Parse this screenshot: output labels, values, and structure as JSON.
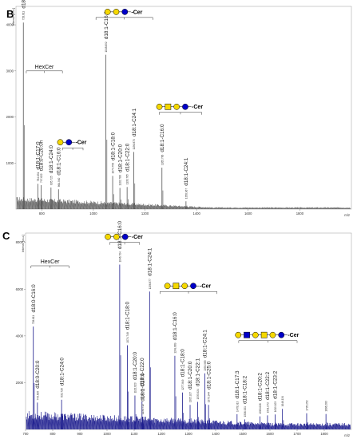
{
  "chart_data": [
    {
      "panel": "B",
      "type": "line",
      "ylabel": "Intens. [a.u.]",
      "xlabel": "m/z",
      "xlim": [
        700,
        2000
      ],
      "ylim": [
        0,
        4400
      ],
      "x_ticks": [
        "800",
        "1000",
        "1200",
        "1400",
        "1600",
        "1800"
      ],
      "y_ticks": [
        "1000",
        "2000",
        "3000",
        "4000"
      ],
      "line_color": "#555555",
      "groups": [
        {
          "label": "HexCer",
          "x_range": [
            740,
            880
          ],
          "y": 3000
        },
        {
          "label": "Cer",
          "glycan": [
            "gal",
            "gal",
            "glc"
          ],
          "x_range": [
            1010,
            1230
          ],
          "y": 4160
        },
        {
          "label": "Cer",
          "glycan": [
            "gal",
            "galnac",
            "gal",
            "glc"
          ],
          "x_range": [
            1255,
            1420
          ],
          "y": 2100
        },
        {
          "label": "Cer",
          "glycan": [
            "gal",
            "glc"
          ],
          "x_range": [
            880,
            960
          ],
          "y": 1330
        }
      ],
      "peaks": [
        {
          "x": 728.6,
          "y": 4050,
          "label": "d18:0-C16:0",
          "mz": "728.611"
        },
        {
          "x": 784.6,
          "y": 550,
          "label": "d18:1-C17:0",
          "mz": "784.631"
        },
        {
          "x": 797.6,
          "y": 520,
          "label": "d18:0-C20:0h",
          "mz": "797.622"
        },
        {
          "x": 835.7,
          "y": 470,
          "label": "d18:1-C24:0",
          "mz": "835.725"
        },
        {
          "x": 864.9,
          "y": 430,
          "label": "d18:1-C16:0",
          "mz": "864.940"
        },
        {
          "x": 1048.6,
          "y": 3350,
          "label": "d18:1-C16:0",
          "mz": "1048.692"
        },
        {
          "x": 1074.7,
          "y": 720,
          "label": "d18:1-C18:0",
          "mz": "1074.758"
        },
        {
          "x": 1102.8,
          "y": 460,
          "label": "d18:1-C20:0",
          "mz": "1102.788"
        },
        {
          "x": 1130.7,
          "y": 480,
          "label": "d18:1-C22:0",
          "mz": "1130.765"
        },
        {
          "x": 1156.8,
          "y": 1240,
          "label": "d18:1-C24:1",
          "mz": "1156.870"
        },
        {
          "x": 1265.7,
          "y": 900,
          "label": "d18:1-C16:0",
          "mz": "1265.766"
        },
        {
          "x": 1358.9,
          "y": 170,
          "label": "d18:1-C24:1",
          "mz": "1358.967"
        }
      ]
    },
    {
      "panel": "C",
      "type": "line",
      "ylabel": "Intens. [a.u.]",
      "xlabel": "m/z",
      "xlim": [
        700,
        1900
      ],
      "ylim": [
        0,
        8400
      ],
      "x_ticks": [
        "700",
        "800",
        "900",
        "1000",
        "1100",
        "1200",
        "1300",
        "1400",
        "1500",
        "1600",
        "1700",
        "1800"
      ],
      "y_ticks": [
        "2000",
        "4000",
        "6000",
        "8000"
      ],
      "line_color": "#1a1a8c",
      "groups": [
        {
          "label": "HexCer",
          "x_range": [
            720,
            860
          ],
          "y": 7000
        },
        {
          "label": "Cer",
          "glycan": [
            "gal",
            "gal",
            "glc"
          ],
          "x_range": [
            1010,
            1120
          ],
          "y": 8000
        },
        {
          "label": "Cer",
          "glycan": [
            "gal",
            "galnac",
            "gal",
            "glc"
          ],
          "x_range": [
            1195,
            1405
          ],
          "y": 5900
        },
        {
          "label": "Cer",
          "glycan": [
            "gal",
            "glcnac",
            "gal",
            "galnac",
            "gal",
            "glc"
          ],
          "x_range": [
            1485,
            1700
          ],
          "y": 3800
        }
      ],
      "peaks": [
        {
          "x": 728.6,
          "y": 4400,
          "label": "d18:0-C16:0",
          "mz": "728.611"
        },
        {
          "x": 743.7,
          "y": 1150,
          "label": "d18:0-C20:0",
          "mz": "743.695"
        },
        {
          "x": 832.7,
          "y": 1270,
          "label": "d18:1-C24:0",
          "mz": "832.728"
        },
        {
          "x": 1046.7,
          "y": 7050,
          "label": "d18:1-C16:0",
          "mz": "1046.704"
        },
        {
          "x": 1074.7,
          "y": 3600,
          "label": "d18:1-C18:0",
          "mz": "1074.748"
        },
        {
          "x": 1102.8,
          "y": 1450,
          "label": "d18:1-C20:0",
          "mz": "1102.823"
        },
        {
          "x": 1128.8,
          "y": 1200,
          "label": "d18:1-C22:0",
          "mz": "1128.865"
        },
        {
          "x": 1156.8,
          "y": 5900,
          "label": "d18:1-C24:1",
          "mz": "1156.877"
        },
        {
          "x": 1130.7,
          "y": 540,
          "label": "d18:1-C27:0",
          "mz": "1130.712"
        },
        {
          "x": 1249.8,
          "y": 3150,
          "label": "d18:1-C16:0",
          "mz": "1249.889"
        },
        {
          "x": 1277.8,
          "y": 1580,
          "label": "d18:1-C18:0",
          "mz": "1277.849"
        },
        {
          "x": 1305.9,
          "y": 1050,
          "label": "d18:1-C20:0",
          "mz": "1305.927"
        },
        {
          "x": 1333.9,
          "y": 1180,
          "label": "d18:1-C22:1",
          "mz": "1333.924"
        },
        {
          "x": 1359.9,
          "y": 2400,
          "label": "d18:1-C24:1",
          "mz": "1359.983"
        },
        {
          "x": 1373.9,
          "y": 1050,
          "label": "d18:1-C25:0",
          "mz": "1373.944"
        },
        {
          "x": 1478.9,
          "y": 650,
          "label": "d18:1-C17:3",
          "mz": "1478.913"
        },
        {
          "x": 1506.9,
          "y": 430,
          "label": "d18:1-C18:2",
          "mz": "1506.921"
        },
        {
          "x": 1563.0,
          "y": 560,
          "label": "d18:1-C20:2",
          "mz": "1563.026"
        },
        {
          "x": 1591.0,
          "y": 600,
          "label": "d18:1-C22:2",
          "mz": "1591.072"
        },
        {
          "x": 1619.1,
          "y": 640,
          "label": "d18:1-C23:2",
          "mz": "1619.103"
        },
        {
          "x": 1646.1,
          "y": 880,
          "label": "",
          "mz": "1646.134"
        },
        {
          "x": 1735.2,
          "y": 690,
          "label": "",
          "mz": "1735.252"
        },
        {
          "x": 1806.3,
          "y": 660,
          "label": "",
          "mz": "1806.283"
        }
      ]
    }
  ]
}
